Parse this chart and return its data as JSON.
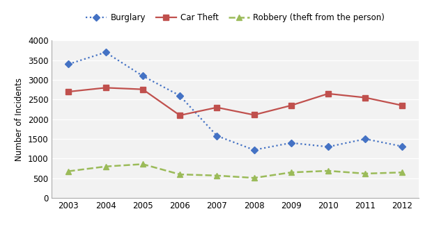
{
  "years": [
    2003,
    2004,
    2005,
    2006,
    2007,
    2008,
    2009,
    2010,
    2011,
    2012
  ],
  "burglary": [
    3400,
    3700,
    3100,
    2600,
    1580,
    1220,
    1400,
    1300,
    1500,
    1310
  ],
  "car_theft": [
    2700,
    2800,
    2760,
    2100,
    2300,
    2110,
    2350,
    2650,
    2550,
    2350
  ],
  "robbery": [
    680,
    800,
    860,
    600,
    570,
    510,
    650,
    690,
    620,
    650
  ],
  "burglary_color": "#4472c4",
  "car_theft_color": "#c0504d",
  "robbery_color": "#9bbb59",
  "ylabel": "Number of Incidents",
  "ylim": [
    0,
    4000
  ],
  "yticks": [
    0,
    500,
    1000,
    1500,
    2000,
    2500,
    3000,
    3500,
    4000
  ],
  "legend_labels": [
    "Burglary",
    "Car Theft",
    "Robbery (theft from the person)"
  ],
  "background_color": "#ffffff",
  "plot_bg_color": "#f2f2f2",
  "grid_color": "#ffffff"
}
